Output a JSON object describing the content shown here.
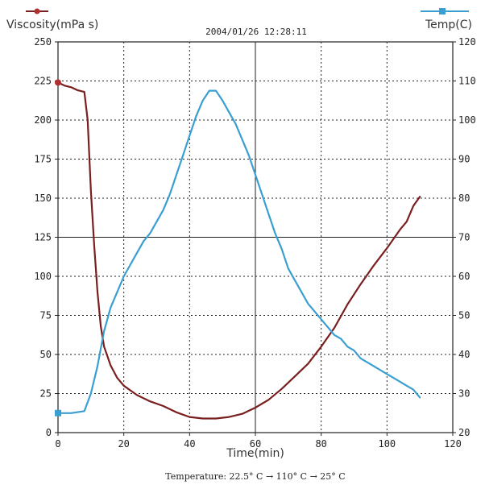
{
  "chart_data": {
    "type": "line",
    "timestamp": "2004/01/26 12:28:11",
    "footer_note": "Temperature: 22.5° C → 110° C → 25° C",
    "xlabel": "Time(min)",
    "ylabel_left": "Viscosity(mPa s)",
    "ylabel_right": "Temp(C)",
    "xlim": [
      0,
      120
    ],
    "ylim_left": [
      0,
      250
    ],
    "ylim_right": [
      20,
      120
    ],
    "x_ticks": [
      "0",
      "20",
      "40",
      "60",
      "80",
      "100",
      "120"
    ],
    "y_left_ticks": [
      "0",
      "25",
      "50",
      "75",
      "100",
      "125",
      "150",
      "175",
      "200",
      "225",
      "250"
    ],
    "y_right_ticks": [
      "20",
      "30",
      "40",
      "50",
      "60",
      "70",
      "80",
      "90",
      "100",
      "110",
      "120"
    ],
    "grid": true,
    "series": [
      {
        "name": "Viscosity(mPa s)",
        "axis": "left",
        "color": "#7a1f1f",
        "marker_color": "#b03030",
        "x": [
          0,
          2,
          4,
          6,
          8,
          9,
          10,
          11,
          12,
          13,
          14,
          16,
          18,
          20,
          24,
          28,
          32,
          36,
          40,
          44,
          48,
          52,
          56,
          60,
          64,
          68,
          72,
          76,
          80,
          84,
          88,
          92,
          96,
          100,
          104,
          106,
          108,
          110
        ],
        "values": [
          224,
          222,
          221,
          219,
          218,
          200,
          155,
          120,
          90,
          68,
          55,
          43,
          35,
          30,
          24,
          20,
          17,
          13,
          10,
          9,
          9,
          10,
          12,
          16,
          21,
          28,
          36,
          44,
          55,
          67,
          82,
          95,
          107,
          118,
          130,
          135,
          145,
          151
        ]
      },
      {
        "name": "Temp(C)",
        "axis": "right",
        "color": "#3a9fd0",
        "marker_color": "#3a9fd0",
        "x": [
          0,
          4,
          8,
          10,
          12,
          14,
          16,
          18,
          20,
          22,
          24,
          26,
          28,
          30,
          32,
          34,
          36,
          38,
          40,
          42,
          44,
          46,
          48,
          50,
          52,
          54,
          56,
          58,
          60,
          62,
          64,
          66,
          68,
          70,
          72,
          74,
          76,
          78,
          80,
          82,
          84,
          86,
          88,
          90,
          92,
          94,
          96,
          98,
          100,
          102,
          104,
          106,
          108,
          110
        ],
        "values": [
          25,
          25,
          25.5,
          30,
          37,
          46,
          52,
          56,
          60,
          63,
          66,
          69,
          71,
          74,
          77,
          81,
          86,
          91,
          96,
          101,
          105,
          107.5,
          107.5,
          105,
          102,
          99,
          95,
          91,
          86,
          81,
          76,
          71,
          67,
          62,
          59,
          56,
          53,
          51,
          49,
          47,
          45,
          44,
          42,
          41,
          39,
          38,
          37,
          36,
          35,
          34,
          33,
          32,
          31,
          29
        ]
      }
    ]
  }
}
